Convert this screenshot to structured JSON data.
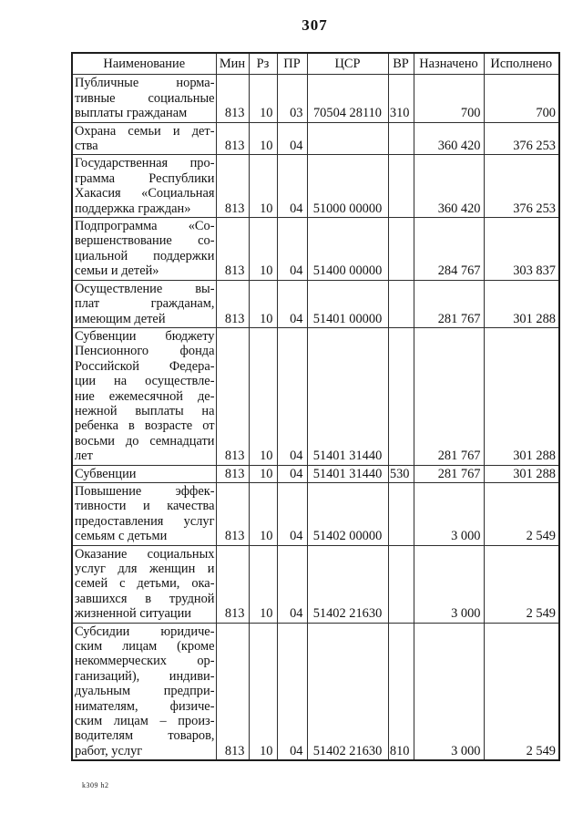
{
  "page": {
    "number": "307"
  },
  "footer": {
    "note": "k309 h2"
  },
  "table": {
    "headers": [
      "Наименование",
      "Мин",
      "Рз",
      "ПР",
      "ЦСР",
      "ВР",
      "Назначено",
      "Исполнено"
    ],
    "rows": [
      {
        "name_lines": [
          "Публичные норма-",
          "тивные социальные",
          "выплаты гражданам"
        ],
        "min": "813",
        "rz": "10",
        "pr": "03",
        "csr": "70504 28110",
        "vr": "310",
        "assigned": "700",
        "executed": "700"
      },
      {
        "name_lines": [
          "Охрана семьи и дет-",
          "ства"
        ],
        "min": "813",
        "rz": "10",
        "pr": "04",
        "csr": "",
        "vr": "",
        "assigned": "360 420",
        "executed": "376 253"
      },
      {
        "name_lines": [
          "Государственная про-",
          "грамма Республики",
          "Хакасия «Социальная",
          "поддержка граждан»"
        ],
        "min": "813",
        "rz": "10",
        "pr": "04",
        "csr": "51000 00000",
        "vr": "",
        "assigned": "360 420",
        "executed": "376 253"
      },
      {
        "name_lines": [
          "Подпрограмма «Со-",
          "вершенствование со-",
          "циальной поддержки",
          "семьи и детей»"
        ],
        "min": "813",
        "rz": "10",
        "pr": "04",
        "csr": "51400 00000",
        "vr": "",
        "assigned": "284 767",
        "executed": "303 837"
      },
      {
        "name_lines": [
          "Осуществление вы-",
          "плат гражданам,",
          "имеющим детей"
        ],
        "min": "813",
        "rz": "10",
        "pr": "04",
        "csr": "51401 00000",
        "vr": "",
        "assigned": "281 767",
        "executed": "301 288"
      },
      {
        "name_lines": [
          "Субвенции бюджету",
          "Пенсионного фонда",
          "Российской Федера-",
          "ции на осуществле-",
          "ние ежемесячной де-",
          "нежной выплаты на",
          "ребенка в возрасте от",
          "восьми до семнадцати",
          "лет"
        ],
        "min": "813",
        "rz": "10",
        "pr": "04",
        "csr": "51401 31440",
        "vr": "",
        "assigned": "281 767",
        "executed": "301 288"
      },
      {
        "name_lines": [
          "Субвенции"
        ],
        "min": "813",
        "rz": "10",
        "pr": "04",
        "csr": "51401 31440",
        "vr": "530",
        "assigned": "281 767",
        "executed": "301 288"
      },
      {
        "name_lines": [
          "Повышение эффек-",
          "тивности и качества",
          "предоставления услуг",
          "семьям с детьми"
        ],
        "min": "813",
        "rz": "10",
        "pr": "04",
        "csr": "51402 00000",
        "vr": "",
        "assigned": "3 000",
        "executed": "2 549"
      },
      {
        "name_lines": [
          "Оказание социальных",
          "услуг для женщин и",
          "семей с детьми, ока-",
          "завшихся в трудной",
          "жизненной ситуации"
        ],
        "min": "813",
        "rz": "10",
        "pr": "04",
        "csr": "51402 21630",
        "vr": "",
        "assigned": "3 000",
        "executed": "2 549"
      },
      {
        "name_lines": [
          "Субсидии юридиче-",
          "ским лицам (кроме",
          "некоммерческих ор-",
          "ганизаций), индиви-",
          "дуальным предпри-",
          "нимателям, физиче-",
          "ским лицам – произ-",
          "водителям товаров,",
          "работ, услуг"
        ],
        "min": "813",
        "rz": "10",
        "pr": "04",
        "csr": "51402 21630",
        "vr": "810",
        "assigned": "3 000",
        "executed": "2 549"
      }
    ]
  }
}
